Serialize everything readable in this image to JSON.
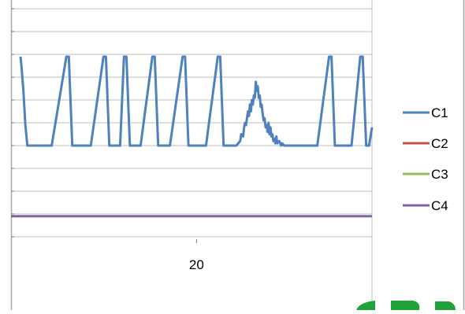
{
  "chart_data": {
    "type": "line",
    "title": "",
    "xlabel": "",
    "ylabel": "",
    "xlim": [
      1,
      37
    ],
    "ylim": [
      -3,
      8
    ],
    "x_tick_labels": [
      {
        "value": 20,
        "label": "20"
      }
    ],
    "grid": true,
    "legend_placement": "right",
    "series": [
      {
        "name": "C1",
        "color": "#4f81bd",
        "points": [
          [
            1.0,
            5
          ],
          [
            1.1,
            4.6
          ],
          [
            1.3,
            3.5
          ],
          [
            1.5,
            2
          ],
          [
            1.7,
            1.1
          ],
          [
            4.2,
            1.1
          ],
          [
            5.7,
            5
          ],
          [
            5.95,
            5
          ],
          [
            6.3,
            1.1
          ],
          [
            8.2,
            1.1
          ],
          [
            9.5,
            5
          ],
          [
            9.75,
            5
          ],
          [
            10.1,
            1.1
          ],
          [
            11.2,
            1.1
          ],
          [
            11.6,
            5
          ],
          [
            11.85,
            5
          ],
          [
            12.2,
            1.1
          ],
          [
            13.3,
            1.1
          ],
          [
            14.5,
            5
          ],
          [
            14.75,
            5
          ],
          [
            15.1,
            1.1
          ],
          [
            16.3,
            1.1
          ],
          [
            17.6,
            5
          ],
          [
            17.85,
            5
          ],
          [
            18.2,
            1.1
          ],
          [
            20.0,
            1.1
          ],
          [
            21.2,
            5
          ],
          [
            21.45,
            5
          ],
          [
            21.8,
            1.1
          ],
          [
            23.1,
            1.1
          ],
          [
            23.3,
            1.2
          ],
          [
            23.5,
            1.3
          ],
          [
            23.6,
            1.6
          ],
          [
            23.8,
            1.5
          ],
          [
            23.9,
            1.9
          ],
          [
            24.0,
            2.1
          ],
          [
            24.1,
            2.0
          ],
          [
            24.2,
            2.3
          ],
          [
            24.3,
            2.6
          ],
          [
            24.4,
            2.4
          ],
          [
            24.5,
            2.9
          ],
          [
            24.6,
            2.6
          ],
          [
            24.7,
            3.1
          ],
          [
            24.8,
            2.9
          ],
          [
            24.9,
            3.3
          ],
          [
            25.0,
            3.2
          ],
          [
            25.1,
            3.9
          ],
          [
            25.2,
            3.5
          ],
          [
            25.3,
            3.7
          ],
          [
            25.4,
            3.2
          ],
          [
            25.5,
            3.3
          ],
          [
            25.6,
            2.8
          ],
          [
            25.7,
            2.9
          ],
          [
            25.8,
            2.5
          ],
          [
            25.9,
            2.2
          ],
          [
            26.0,
            2.3
          ],
          [
            26.1,
            1.9
          ],
          [
            26.2,
            2.0
          ],
          [
            26.3,
            1.7
          ],
          [
            26.4,
            2.1
          ],
          [
            26.5,
            1.6
          ],
          [
            26.6,
            1.9
          ],
          [
            26.7,
            1.5
          ],
          [
            26.8,
            1.6
          ],
          [
            26.9,
            1.3
          ],
          [
            27.0,
            1.4
          ],
          [
            27.1,
            1.2
          ],
          [
            27.2,
            1.5
          ],
          [
            27.3,
            1.2
          ],
          [
            27.5,
            1.3
          ],
          [
            27.7,
            1.1
          ],
          [
            27.8,
            1.2
          ],
          [
            28.0,
            1.1
          ],
          [
            29.5,
            1.1
          ],
          [
            31.4,
            1.1
          ],
          [
            32.6,
            5
          ],
          [
            32.85,
            5
          ],
          [
            33.2,
            1.1
          ],
          [
            34.9,
            1.1
          ],
          [
            35.8,
            5
          ],
          [
            36.05,
            5
          ],
          [
            36.4,
            1.1
          ],
          [
            36.7,
            1.1
          ],
          [
            37.0,
            1.9
          ]
        ]
      },
      {
        "name": "C2",
        "color": "#c0504d",
        "points": []
      },
      {
        "name": "C3",
        "color": "#9bbb59",
        "points": []
      },
      {
        "name": "C4",
        "color": "#8064a2",
        "points": [
          [
            0,
            -2
          ],
          [
            37,
            -2
          ]
        ]
      }
    ]
  },
  "legend": {
    "items": [
      {
        "label": "C1",
        "color": "#4f81bd"
      },
      {
        "label": "C2",
        "color": "#c0504d"
      },
      {
        "label": "C3",
        "color": "#9bbb59"
      },
      {
        "label": "C4",
        "color": "#8064a2"
      }
    ]
  },
  "decor": {
    "frame_border_color": "#a6a6a6",
    "logo_color": "#22a33a"
  }
}
